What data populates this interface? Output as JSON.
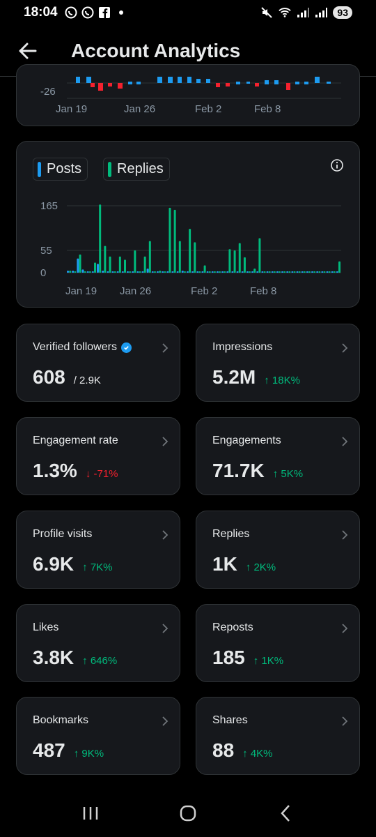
{
  "status_bar": {
    "time": "18:04",
    "battery": "93"
  },
  "header": {
    "title": "Account Analytics"
  },
  "chart_top": {
    "y_tick": "-26",
    "x_ticks": [
      "Jan 19",
      "Jan 26",
      "Feb 2",
      "Feb 8"
    ]
  },
  "chart_data": {
    "type": "bar",
    "legend": [
      "Posts",
      "Replies"
    ],
    "x_ticks": [
      "Jan 19",
      "Jan 26",
      "Feb 2",
      "Feb 8"
    ],
    "y_ticks": [
      "0",
      "55",
      "165"
    ],
    "ylim": [
      0,
      165
    ],
    "colors": {
      "posts": "#1d9bf0",
      "replies": "#00ba7c"
    },
    "series": [
      {
        "name": "Posts",
        "values": [
          5,
          5,
          35,
          8,
          3,
          3,
          22,
          5,
          3,
          3,
          3,
          3,
          3,
          3,
          3,
          3,
          10,
          3,
          3,
          3,
          3,
          3,
          3,
          5,
          3,
          3,
          3,
          3,
          3,
          3,
          3,
          3,
          3,
          3,
          3,
          3,
          3,
          3,
          3,
          3,
          3,
          3,
          3,
          3,
          3,
          3,
          3,
          3,
          3,
          3,
          3,
          3,
          3,
          3,
          3
        ]
      },
      {
        "name": "Replies",
        "values": [
          5,
          3,
          45,
          3,
          3,
          25,
          168,
          66,
          40,
          3,
          40,
          32,
          3,
          55,
          3,
          40,
          78,
          3,
          5,
          3,
          160,
          155,
          78,
          3,
          108,
          75,
          3,
          18,
          3,
          3,
          3,
          3,
          58,
          55,
          73,
          38,
          3,
          10,
          85,
          3,
          3,
          3,
          3,
          3,
          3,
          3,
          3,
          3,
          3,
          3,
          3,
          3,
          3,
          3,
          28
        ]
      }
    ]
  },
  "metrics": [
    {
      "title": "Verified followers",
      "value": "608",
      "sub": "/ 2.9K",
      "delta": "",
      "verified": true
    },
    {
      "title": "Impressions",
      "value": "5.2M",
      "sub": "",
      "delta": "↑ 18K%"
    },
    {
      "title": "Engagement rate",
      "value": "1.3%",
      "sub": "",
      "delta": "↓ -71%"
    },
    {
      "title": "Engagements",
      "value": "71.7K",
      "sub": "",
      "delta": "↑ 5K%"
    },
    {
      "title": "Profile visits",
      "value": "6.9K",
      "sub": "",
      "delta": "↑ 7K%"
    },
    {
      "title": "Replies",
      "value": "1K",
      "sub": "",
      "delta": "↑ 2K%"
    },
    {
      "title": "Likes",
      "value": "3.8K",
      "sub": "",
      "delta": "↑ 646%"
    },
    {
      "title": "Reposts",
      "value": "185",
      "sub": "",
      "delta": "↑ 1K%"
    },
    {
      "title": "Bookmarks",
      "value": "487",
      "sub": "",
      "delta": "↑ 9K%"
    },
    {
      "title": "Shares",
      "value": "88",
      "sub": "",
      "delta": "↑ 4K%"
    }
  ]
}
